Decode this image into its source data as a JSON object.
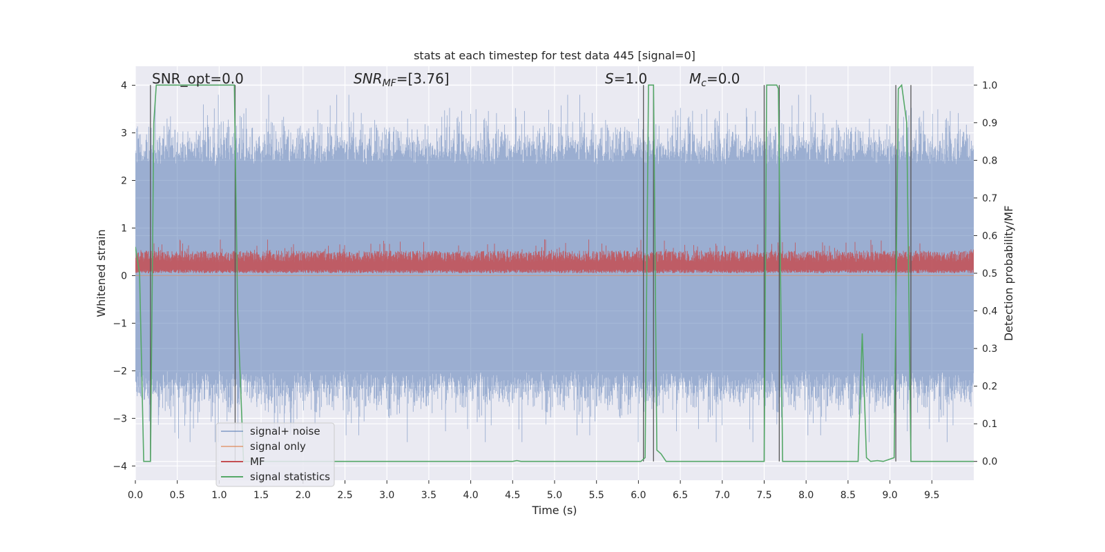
{
  "chart_data": {
    "type": "line",
    "title": "stats at each timestep for test data 445 [signal=0]",
    "xlabel": "Time (s)",
    "ylabel_left": "Whitened strain",
    "ylabel_right": "Detection probability/MF",
    "xlim": [
      0.0,
      10.0
    ],
    "ylim_left": [
      -4.3,
      4.4
    ],
    "ylim_right": [
      -0.05,
      1.05
    ],
    "x_ticks": [
      "0.0",
      "0.5",
      "1.0",
      "1.5",
      "2.0",
      "2.5",
      "3.0",
      "3.5",
      "4.0",
      "4.5",
      "5.0",
      "5.5",
      "6.0",
      "6.5",
      "7.0",
      "7.5",
      "8.0",
      "8.5",
      "9.0",
      "9.5"
    ],
    "y_ticks_left": [
      "4",
      "3",
      "2",
      "1",
      "0",
      "−1",
      "−2",
      "−3",
      "−4"
    ],
    "y_ticks_right": [
      "1.0",
      "0.9",
      "0.8",
      "0.7",
      "0.6",
      "0.5",
      "0.4",
      "0.3",
      "0.2",
      "0.1",
      "0.0"
    ],
    "grid": true,
    "legend_position": "lower-left",
    "colors": {
      "background": "#eaeaf2",
      "grid": "#ffffff",
      "signal_noise": "#4c72b0",
      "signal_only": "#dd8452",
      "mf": "#c44e52",
      "signal_statistics": "#55a868",
      "markers": "#555555"
    },
    "annotations": {
      "snr_opt": "SNR_opt=0.0",
      "snr_mf_sym": "SNR",
      "snr_mf_sub": "MF",
      "snr_mf_val": "=[3.76]",
      "s_sym": "S",
      "s_val": "=1.0",
      "mc_sym": "M",
      "mc_sub": "c",
      "mc_val": "=0.0"
    },
    "series": [
      {
        "name": "signal+ noise",
        "axis": "left",
        "description_values": "white-noise strain spanning roughly -3.5 to 3.8",
        "approx_range": [
          -3.5,
          3.8
        ],
        "band_core": [
          -2.0,
          2.3
        ]
      },
      {
        "name": "signal only",
        "axis": "left",
        "values_constant": 0.0
      },
      {
        "name": "MF",
        "axis": "right",
        "approx_range": [
          0.5,
          0.59
        ],
        "core_range": [
          0.5,
          0.56
        ]
      },
      {
        "name": "signal statistics",
        "axis": "right",
        "points": [
          [
            0.0,
            0.57
          ],
          [
            0.05,
            0.5
          ],
          [
            0.1,
            0.0
          ],
          [
            0.18,
            0.0
          ],
          [
            0.22,
            0.9
          ],
          [
            0.25,
            1.0
          ],
          [
            1.18,
            1.0
          ],
          [
            1.22,
            0.4
          ],
          [
            1.29,
            0.0
          ],
          [
            4.5,
            0.0
          ],
          [
            4.55,
            0.002
          ],
          [
            4.6,
            0.0
          ],
          [
            6.03,
            0.0
          ],
          [
            6.08,
            0.01
          ],
          [
            6.12,
            1.0
          ],
          [
            6.18,
            1.0
          ],
          [
            6.22,
            0.03
          ],
          [
            6.27,
            0.02
          ],
          [
            6.33,
            0.0
          ],
          [
            7.5,
            0.0
          ],
          [
            7.53,
            1.0
          ],
          [
            7.65,
            1.0
          ],
          [
            7.67,
            0.99
          ],
          [
            7.72,
            0.0
          ],
          [
            8.62,
            0.0
          ],
          [
            8.67,
            0.34
          ],
          [
            8.72,
            0.01
          ],
          [
            8.77,
            0.0
          ],
          [
            8.85,
            0.002
          ],
          [
            8.92,
            0.0
          ],
          [
            9.05,
            0.01
          ],
          [
            9.1,
            0.99
          ],
          [
            9.14,
            1.0
          ],
          [
            9.2,
            0.9
          ],
          [
            9.25,
            0.0
          ],
          [
            10.0,
            0.0
          ]
        ]
      }
    ],
    "vertical_markers": [
      0.18,
      1.19,
      6.06,
      6.18,
      7.5,
      7.68,
      9.07,
      9.25
    ]
  }
}
